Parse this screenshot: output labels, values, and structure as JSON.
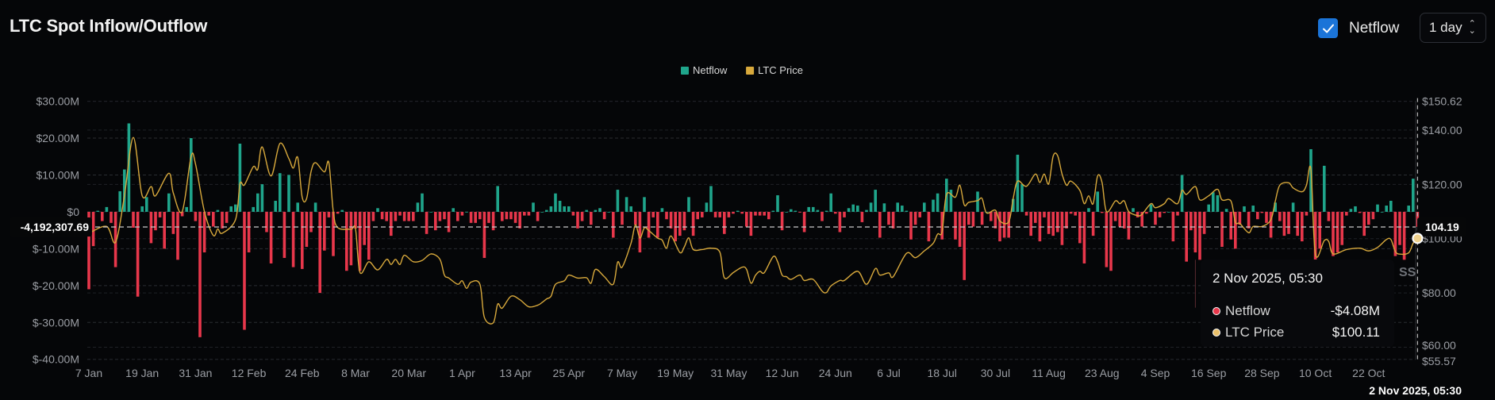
{
  "header": {
    "title": "LTC Spot Inflow/Outflow",
    "netflow_toggle": {
      "label": "Netflow",
      "checked": true,
      "icon": "check-icon"
    },
    "interval_select": {
      "value": "1 day",
      "icon": "chevron-up-down-icon"
    }
  },
  "colors": {
    "inflow": "#1fa58b",
    "outflow": "#e8374b",
    "price": "#d8a93c",
    "checkbox": "#1b74d8"
  },
  "watermark_fragment": "SS",
  "chart_data": {
    "type": "bar+line",
    "legend": [
      {
        "name": "Netflow",
        "color": "#1fa58b"
      },
      {
        "name": "LTC Price",
        "color": "#d8a93c"
      }
    ],
    "legend_position": "top-center",
    "grid": true,
    "x_range": [
      "2025-01-07",
      "2025-11-02"
    ],
    "x_ticks": [
      "7 Jan",
      "19 Jan",
      "31 Jan",
      "12 Feb",
      "24 Feb",
      "8 Mar",
      "20 Mar",
      "1 Apr",
      "13 Apr",
      "25 Apr",
      "7 May",
      "19 May",
      "31 May",
      "12 Jun",
      "24 Jun",
      "6 Jul",
      "18 Jul",
      "30 Jul",
      "11 Aug",
      "23 Aug",
      "4 Sep",
      "16 Sep",
      "28 Sep",
      "10 Oct",
      "22 Oct"
    ],
    "y_left": {
      "unit": "USD millions",
      "range": [
        -40,
        30
      ],
      "ticks": [
        {
          "v": 30,
          "label": "$30.00M"
        },
        {
          "v": 20,
          "label": "$20.00M"
        },
        {
          "v": 10,
          "label": "$10.00M"
        },
        {
          "v": 0,
          "label": "$0"
        },
        {
          "v": -10,
          "label": "$-10.00M"
        },
        {
          "v": -20,
          "label": "$-20.00M"
        },
        {
          "v": -30,
          "label": "$-30.00M"
        },
        {
          "v": -40,
          "label": "$-40.00M"
        }
      ]
    },
    "y_right": {
      "unit": "USD",
      "range": [
        55.57,
        150.62
      ],
      "ticks": [
        {
          "v": 150.62,
          "label": "$150.62"
        },
        {
          "v": 140,
          "label": "$140.00"
        },
        {
          "v": 120,
          "label": "$120.00"
        },
        {
          "v": 100,
          "label": "$100.00"
        },
        {
          "v": 80,
          "label": "$80.00"
        },
        {
          "v": 60,
          "label": "$60.00"
        },
        {
          "v": 55.57,
          "label": "$55.57"
        }
      ]
    },
    "netflow_daily_musd": [
      -21,
      -9.3,
      0.3,
      -2.5,
      1.3,
      -3,
      -15,
      5.6,
      11.5,
      24,
      -4.3,
      -23,
      1.5,
      4,
      -8.5,
      -5,
      -1.5,
      -10,
      5,
      -6,
      -13,
      -1.2,
      1.3,
      20,
      -2.5,
      -34,
      -11,
      -1,
      -4,
      0.5,
      -4.5,
      -3,
      1.5,
      2,
      18.5,
      -32,
      -11,
      1.3,
      5,
      7.5,
      -5.5,
      -14,
      3,
      10.5,
      -12.5,
      10,
      -15,
      2.5,
      -15.5,
      -9.5,
      -5.5,
      2.5,
      -22,
      -10.5,
      -1.5,
      -12,
      -0.5,
      0.5,
      -16,
      -14.5,
      -4.5,
      -16,
      -9,
      -13,
      -2.5,
      1,
      -2,
      -2.5,
      -6.5,
      -2.5,
      -1,
      -2.5,
      -2.5,
      -2.5,
      2.5,
      5,
      -6,
      0,
      -5,
      -2.5,
      -2,
      -5.5,
      1,
      -2.5,
      -1,
      0,
      -3,
      -3,
      -2,
      -12.5,
      -3,
      -5,
      7,
      -2.5,
      -2,
      -2,
      -3,
      -4.5,
      -1,
      -1,
      2.5,
      -2.5,
      0,
      0.5,
      1.5,
      5,
      3,
      1.5,
      1.5,
      -1,
      -4.5,
      -2.5,
      0.5,
      -3.5,
      0.5,
      1,
      -2,
      0,
      -7,
      6,
      -3.5,
      4,
      1.5,
      -3.5,
      -11,
      4,
      -7,
      -1.5,
      -7,
      1,
      -2,
      -4.5,
      -8,
      -6.5,
      -5,
      4,
      -6.5,
      -2,
      -1.5,
      2.5,
      7,
      -1.5,
      -1.5,
      -6,
      -1.5,
      -0.5,
      0.3,
      -0.5,
      -4,
      -6.5,
      -1,
      -1,
      -1,
      -2,
      0.3,
      4.5,
      -5,
      0,
      0.7,
      0.3,
      -0.2,
      -5.5,
      1.3,
      1.3,
      0.5,
      -2.5,
      0.3,
      5,
      -0.5,
      -5.5,
      -1.5,
      1,
      2,
      1.7,
      -2.8,
      0.5,
      2.5,
      6,
      -7,
      2.3,
      -3.5,
      -4.5,
      2.5,
      1.7,
      0.3,
      -7.5,
      -3.5,
      -1.5,
      2.5,
      -8,
      3.3,
      5,
      -7.5,
      9,
      6,
      -7.5,
      -9.5,
      -18.5,
      -3.5,
      -4,
      5.5,
      -3.5,
      0,
      -2.5,
      -4.5,
      -8,
      -7,
      -7,
      3.5,
      15.5,
      7.5,
      -1,
      -6.5,
      -3,
      -8,
      -1.5,
      -6,
      -6.5,
      -5.5,
      -9,
      -4.5,
      -0.5,
      -1,
      -8.5,
      -14,
      1,
      -6.5,
      5.5,
      -0.3,
      -15,
      -16,
      -2.5,
      -4,
      -4.5,
      -7.5,
      1,
      -1.5,
      -4,
      -0.5,
      2,
      -3.5,
      -1.5,
      -0.3,
      0,
      -8,
      -1,
      10,
      -13.5,
      -5,
      -11,
      -13,
      -6,
      2,
      5.3,
      4.5,
      -9.5,
      0.8,
      -7.5,
      -10,
      -3.5,
      1.5,
      -4.5,
      1.7,
      -2,
      -0.3,
      -3,
      -7,
      2.5,
      -2.5,
      -6.5,
      -6,
      2.5,
      -6.5,
      -8,
      -1,
      17,
      -15,
      -10,
      12.5,
      -2.5,
      -12,
      -11,
      -9,
      -1,
      0.8,
      1.5,
      -0.3,
      -6.5,
      -3.5,
      -2,
      2,
      0,
      1.7,
      3,
      -12,
      -9,
      -13,
      1.7,
      9,
      -4.08
    ],
    "price": [
      [
        "2025-01-07",
        102
      ],
      [
        "2025-01-11",
        104.5
      ],
      [
        "2025-01-13",
        98.7
      ],
      [
        "2025-01-15",
        115.8
      ],
      [
        "2025-01-17",
        137.3
      ],
      [
        "2025-01-19",
        115.8
      ],
      [
        "2025-01-21",
        119.2
      ],
      [
        "2025-01-22",
        115.8
      ],
      [
        "2025-01-25",
        124.1
      ],
      [
        "2025-01-26",
        116.8
      ],
      [
        "2025-01-28",
        110
      ],
      [
        "2025-01-30",
        130.2
      ],
      [
        "2025-01-31",
        127.5
      ],
      [
        "2025-02-02",
        110
      ],
      [
        "2025-02-04",
        101.2
      ],
      [
        "2025-02-05",
        103.6
      ],
      [
        "2025-02-06",
        102
      ],
      [
        "2025-02-09",
        107
      ],
      [
        "2025-02-10",
        120.2
      ],
      [
        "2025-02-11",
        119.8
      ],
      [
        "2025-02-13",
        126.5
      ],
      [
        "2025-02-14",
        125.5
      ],
      [
        "2025-02-15",
        133.8
      ],
      [
        "2025-02-17",
        123.1
      ],
      [
        "2025-02-19",
        135.1
      ],
      [
        "2025-02-21",
        129.5
      ],
      [
        "2025-02-22",
        126
      ],
      [
        "2025-02-23",
        129.9
      ],
      [
        "2025-02-24",
        115.3
      ],
      [
        "2025-02-25",
        114.8
      ],
      [
        "2025-02-26",
        124.7
      ],
      [
        "2025-02-27",
        128
      ],
      [
        "2025-03-01",
        124.6
      ],
      [
        "2025-03-02",
        128
      ],
      [
        "2025-03-03",
        110
      ],
      [
        "2025-03-04",
        104.1
      ],
      [
        "2025-03-07",
        103.5
      ],
      [
        "2025-03-08",
        103.6
      ],
      [
        "2025-03-09",
        87.6
      ],
      [
        "2025-03-11",
        91.5
      ],
      [
        "2025-03-13",
        88.5
      ],
      [
        "2025-03-15",
        92.4
      ],
      [
        "2025-03-16",
        90.5
      ],
      [
        "2025-03-17",
        92.4
      ],
      [
        "2025-03-18",
        90.5
      ],
      [
        "2025-03-19",
        93.9
      ],
      [
        "2025-03-21",
        91.5
      ],
      [
        "2025-03-23",
        92
      ],
      [
        "2025-03-25",
        94.4
      ],
      [
        "2025-03-27",
        92.4
      ],
      [
        "2025-03-28",
        86.6
      ],
      [
        "2025-03-29",
        85.5
      ],
      [
        "2025-03-31",
        83.2
      ],
      [
        "2025-04-01",
        84.5
      ],
      [
        "2025-04-02",
        81.7
      ],
      [
        "2025-04-03",
        84
      ],
      [
        "2025-04-05",
        83.2
      ],
      [
        "2025-04-06",
        71
      ],
      [
        "2025-04-08",
        69
      ],
      [
        "2025-04-09",
        75.9
      ],
      [
        "2025-04-10",
        74.4
      ],
      [
        "2025-04-12",
        78.8
      ],
      [
        "2025-04-14",
        77.5
      ],
      [
        "2025-04-16",
        74.9
      ],
      [
        "2025-04-18",
        75.5
      ],
      [
        "2025-04-19",
        76.5
      ],
      [
        "2025-04-20",
        77.8
      ],
      [
        "2025-04-21",
        78.8
      ],
      [
        "2025-04-22",
        83.2
      ],
      [
        "2025-04-24",
        84.5
      ],
      [
        "2025-04-25",
        86.6
      ],
      [
        "2025-04-27",
        85.5
      ],
      [
        "2025-04-29",
        85.6
      ],
      [
        "2025-04-30",
        83.6
      ],
      [
        "2025-05-01",
        88.7
      ],
      [
        "2025-05-03",
        86
      ],
      [
        "2025-05-05",
        83.2
      ],
      [
        "2025-05-06",
        91.4
      ],
      [
        "2025-05-07",
        89.5
      ],
      [
        "2025-05-09",
        98.3
      ],
      [
        "2025-05-10",
        105.1
      ],
      [
        "2025-05-11",
        100.2
      ],
      [
        "2025-05-12",
        104
      ],
      [
        "2025-05-13",
        103
      ],
      [
        "2025-05-15",
        100.2
      ],
      [
        "2025-05-16",
        99.5
      ],
      [
        "2025-05-17",
        96.5
      ],
      [
        "2025-05-18",
        101
      ],
      [
        "2025-05-20",
        94.9
      ],
      [
        "2025-05-21",
        97
      ],
      [
        "2025-05-22",
        100.3
      ],
      [
        "2025-05-23",
        96
      ],
      [
        "2025-05-25",
        96
      ],
      [
        "2025-05-27",
        96.5
      ],
      [
        "2025-05-29",
        95
      ],
      [
        "2025-05-30",
        85.6
      ],
      [
        "2025-06-01",
        87.5
      ],
      [
        "2025-06-03",
        89.5
      ],
      [
        "2025-06-04",
        88.7
      ],
      [
        "2025-06-05",
        83.6
      ],
      [
        "2025-06-06",
        86.5
      ],
      [
        "2025-06-07",
        88
      ],
      [
        "2025-06-08",
        87.5
      ],
      [
        "2025-06-10",
        93.4
      ],
      [
        "2025-06-11",
        91.5
      ],
      [
        "2025-06-12",
        86.6
      ],
      [
        "2025-06-13",
        86
      ],
      [
        "2025-06-14",
        85
      ],
      [
        "2025-06-16",
        86.6
      ],
      [
        "2025-06-17",
        84.6
      ],
      [
        "2025-06-19",
        85
      ],
      [
        "2025-06-21",
        80.7
      ],
      [
        "2025-06-22",
        80.2
      ],
      [
        "2025-06-23",
        82.6
      ],
      [
        "2025-06-25",
        84.6
      ],
      [
        "2025-06-26",
        84.6
      ],
      [
        "2025-06-29",
        88
      ],
      [
        "2025-07-01",
        83.2
      ],
      [
        "2025-07-03",
        89
      ],
      [
        "2025-07-04",
        86.6
      ],
      [
        "2025-07-06",
        87.4
      ],
      [
        "2025-07-07",
        86
      ],
      [
        "2025-07-10",
        94.6
      ],
      [
        "2025-07-12",
        93
      ],
      [
        "2025-07-14",
        95.5
      ],
      [
        "2025-07-16",
        98.3
      ],
      [
        "2025-07-17",
        101.7
      ],
      [
        "2025-07-18",
        102.6
      ],
      [
        "2025-07-19",
        116.3
      ],
      [
        "2025-07-21",
        115.3
      ],
      [
        "2025-07-22",
        119.7
      ],
      [
        "2025-07-23",
        112.4
      ],
      [
        "2025-07-24",
        113.4
      ],
      [
        "2025-07-26",
        114
      ],
      [
        "2025-07-27",
        114.8
      ],
      [
        "2025-07-28",
        109.5
      ],
      [
        "2025-07-30",
        110.5
      ],
      [
        "2025-07-31",
        106.5
      ],
      [
        "2025-08-02",
        106.2
      ],
      [
        "2025-08-03",
        114.8
      ],
      [
        "2025-08-04",
        121.2
      ],
      [
        "2025-08-06",
        119.3
      ],
      [
        "2025-08-08",
        123.8
      ],
      [
        "2025-08-09",
        120.7
      ],
      [
        "2025-08-10",
        123.8
      ],
      [
        "2025-08-11",
        120.2
      ],
      [
        "2025-08-12",
        130.4
      ],
      [
        "2025-08-13",
        130.6
      ],
      [
        "2025-08-14",
        123.8
      ],
      [
        "2025-08-15",
        119.7
      ],
      [
        "2025-08-16",
        121.2
      ],
      [
        "2025-08-18",
        117.8
      ],
      [
        "2025-08-19",
        112.9
      ],
      [
        "2025-08-20",
        115.8
      ],
      [
        "2025-08-21",
        112.9
      ],
      [
        "2025-08-22",
        123.1
      ],
      [
        "2025-08-23",
        120.7
      ],
      [
        "2025-08-24",
        110
      ],
      [
        "2025-08-26",
        113.9
      ],
      [
        "2025-08-27",
        112.9
      ],
      [
        "2025-08-28",
        113.9
      ],
      [
        "2025-08-29",
        110
      ],
      [
        "2025-08-31",
        108.5
      ],
      [
        "2025-09-01",
        109
      ],
      [
        "2025-09-03",
        112.9
      ],
      [
        "2025-09-04",
        111.4
      ],
      [
        "2025-09-06",
        112.9
      ],
      [
        "2025-09-07",
        114.8
      ],
      [
        "2025-09-09",
        112.9
      ],
      [
        "2025-09-10",
        117.8
      ],
      [
        "2025-09-11",
        116.3
      ],
      [
        "2025-09-13",
        119.2
      ],
      [
        "2025-09-14",
        114.3
      ],
      [
        "2025-09-16",
        115.8
      ],
      [
        "2025-09-18",
        118.2
      ],
      [
        "2025-09-19",
        114.3
      ],
      [
        "2025-09-21",
        113.9
      ],
      [
        "2025-09-22",
        106.1
      ],
      [
        "2025-09-23",
        105.6
      ],
      [
        "2025-09-25",
        102.2
      ],
      [
        "2025-09-26",
        104.5
      ],
      [
        "2025-09-28",
        104.5
      ],
      [
        "2025-09-30",
        107
      ],
      [
        "2025-10-01",
        113.9
      ],
      [
        "2025-10-02",
        119.7
      ],
      [
        "2025-10-04",
        120.6
      ],
      [
        "2025-10-05",
        118.7
      ],
      [
        "2025-10-07",
        117.3
      ],
      [
        "2025-10-08",
        119.7
      ],
      [
        "2025-10-09",
        125.6
      ],
      [
        "2025-10-10",
        94.4
      ],
      [
        "2025-10-12",
        99.3
      ],
      [
        "2025-10-13",
        99
      ],
      [
        "2025-10-14",
        94.4
      ],
      [
        "2025-10-17",
        96
      ],
      [
        "2025-10-20",
        96.5
      ],
      [
        "2025-10-22",
        95.5
      ],
      [
        "2025-10-24",
        96.8
      ],
      [
        "2025-10-26",
        99.7
      ],
      [
        "2025-10-27",
        99.7
      ],
      [
        "2025-10-28",
        95.3
      ],
      [
        "2025-10-29",
        94.3
      ],
      [
        "2025-10-31",
        94.8
      ],
      [
        "2025-11-01",
        98.3
      ],
      [
        "2025-11-02",
        100.11
      ]
    ],
    "crosshair": {
      "netflow_label": "-4,192,307.69",
      "price_label": "104.19",
      "date_label": "2 Nov 2025, 05:30"
    }
  },
  "tooltip": {
    "date": "2 Nov 2025, 05:30",
    "rows": [
      {
        "label": "Netflow",
        "value": "-$4.08M",
        "color": "#e8374b"
      },
      {
        "label": "LTC Price",
        "value": "$100.11",
        "color": "#e9c06a"
      }
    ]
  }
}
